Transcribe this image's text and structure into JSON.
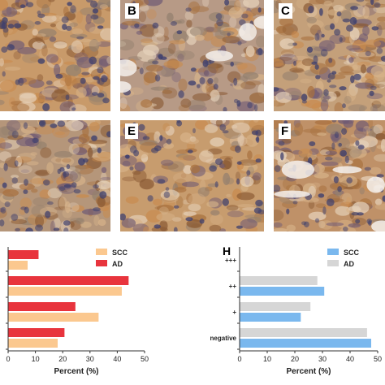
{
  "panels": [
    {
      "letter": "",
      "tone": "#c89a6a"
    },
    {
      "letter": "B",
      "tone": "#b79a86"
    },
    {
      "letter": "C",
      "tone": "#c4a07a"
    },
    {
      "letter": "",
      "tone": "#b5967a"
    },
    {
      "letter": "E",
      "tone": "#c79c6e"
    },
    {
      "letter": "F",
      "tone": "#bf9168"
    }
  ],
  "panel_h_letter": "H",
  "colors": {
    "scc_left": "#fbc88f",
    "ad_left": "#e8343d",
    "scc_right": "#7ab8ee",
    "ad_right": "#d6d6d6"
  },
  "chart_data": [
    {
      "type": "bar",
      "orientation": "horizontal",
      "xlabel": "Percent (%)",
      "xlim": [
        0,
        50
      ],
      "xticks": [
        0,
        10,
        20,
        30,
        40,
        50
      ],
      "categories": [
        "",
        "",
        "",
        ""
      ],
      "series": [
        {
          "name": "SCC",
          "values": [
            7,
            41.5,
            33,
            18
          ]
        },
        {
          "name": "AD",
          "values": [
            11,
            44,
            24.5,
            20.5
          ]
        }
      ],
      "legend": "top-right"
    },
    {
      "type": "bar",
      "orientation": "horizontal",
      "xlabel": "Percent (%)",
      "xlim": [
        0,
        50
      ],
      "xticks": [
        0,
        10,
        20,
        30,
        40,
        50
      ],
      "categories": [
        "+++",
        "++",
        "+",
        "negative"
      ],
      "series": [
        {
          "name": "SCC",
          "values": [
            0,
            30.5,
            22,
            47.5
          ]
        },
        {
          "name": "AD",
          "values": [
            0,
            28,
            25.5,
            46
          ]
        }
      ],
      "legend": "top-right"
    }
  ]
}
